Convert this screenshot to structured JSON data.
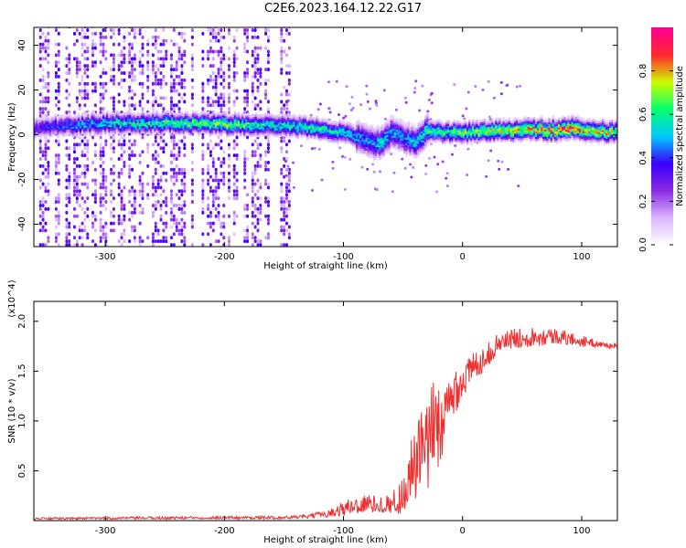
{
  "title": "C2E6.2023.164.12.22.G17",
  "colors": {
    "snr_line": "#f03030",
    "axis": "#000000",
    "colormap": [
      "#ffffff",
      "#d9b3ff",
      "#8a2be2",
      "#3a00ff",
      "#00c8ff",
      "#00ff70",
      "#c8ff00",
      "#ff2a2a",
      "#ff0090"
    ]
  },
  "chart_data": [
    {
      "type": "heatmap",
      "xlabel": "Height of straight line (km)",
      "ylabel": "Frequency (Hz)",
      "xlim": [
        -360,
        130
      ],
      "ylim": [
        -50,
        48
      ],
      "x_ticks": [
        -300,
        -200,
        -100,
        0,
        100
      ],
      "y_ticks": [
        -40,
        -20,
        0,
        20,
        40
      ],
      "colorbar": {
        "label": "Normalized spectral amplitude",
        "ticks": [
          "0.0",
          "0.2",
          "0.4",
          "0.6",
          "0.8"
        ],
        "range": [
          0,
          1
        ]
      },
      "band_profile": {
        "x": [
          -360,
          -300,
          -250,
          -200,
          -150,
          -120,
          -100,
          -80,
          -70,
          -60,
          -50,
          -40,
          -30,
          -20,
          0,
          50,
          80,
          90,
          100,
          130
        ],
        "center_hz": [
          3.0,
          5.0,
          5.0,
          4.5,
          4.0,
          2.5,
          1.0,
          -3.0,
          -4.0,
          1.0,
          -2.0,
          -3.0,
          2.0,
          1.0,
          1.0,
          2.0,
          2.0,
          3.0,
          1.5,
          1.0
        ],
        "peak_amplitude": [
          0.35,
          0.55,
          0.6,
          0.65,
          0.55,
          0.6,
          0.55,
          0.45,
          0.55,
          0.5,
          0.45,
          0.5,
          0.6,
          0.6,
          0.65,
          0.75,
          0.85,
          0.95,
          0.8,
          0.7
        ]
      },
      "noise_region": {
        "x_range": [
          -360,
          -145
        ],
        "level": 0.18
      }
    },
    {
      "type": "line",
      "xlabel": "Height of straight line (km)",
      "ylabel": "SNR (10 * v/v)",
      "y_scale_label": "(x10^4)",
      "xlim": [
        -360,
        130
      ],
      "ylim": [
        0,
        2.2
      ],
      "x_ticks": [
        -300,
        -200,
        -100,
        0,
        100
      ],
      "y_ticks": [
        0.5,
        1.0,
        1.5,
        2.0
      ],
      "envelope": {
        "x": [
          -360,
          -200,
          -150,
          -130,
          -110,
          -100,
          -90,
          -80,
          -70,
          -60,
          -50,
          -45,
          -40,
          -35,
          -30,
          -25,
          -20,
          -15,
          -10,
          -5,
          0,
          10,
          20,
          30,
          40,
          60,
          80,
          100,
          110,
          120,
          130
        ],
        "mean": [
          0.02,
          0.03,
          0.03,
          0.04,
          0.08,
          0.12,
          0.15,
          0.17,
          0.16,
          0.17,
          0.25,
          0.45,
          0.55,
          0.65,
          0.7,
          0.9,
          1.0,
          0.95,
          1.2,
          1.35,
          1.4,
          1.55,
          1.65,
          1.78,
          1.82,
          1.85,
          1.85,
          1.8,
          1.78,
          1.76,
          1.75
        ],
        "jitter": [
          0.01,
          0.015,
          0.015,
          0.02,
          0.04,
          0.08,
          0.1,
          0.1,
          0.08,
          0.1,
          0.2,
          0.3,
          0.4,
          0.45,
          0.5,
          0.5,
          0.45,
          0.4,
          0.3,
          0.25,
          0.2,
          0.15,
          0.12,
          0.1,
          0.1,
          0.1,
          0.08,
          0.06,
          0.04,
          0.03,
          0.03
        ]
      }
    }
  ]
}
